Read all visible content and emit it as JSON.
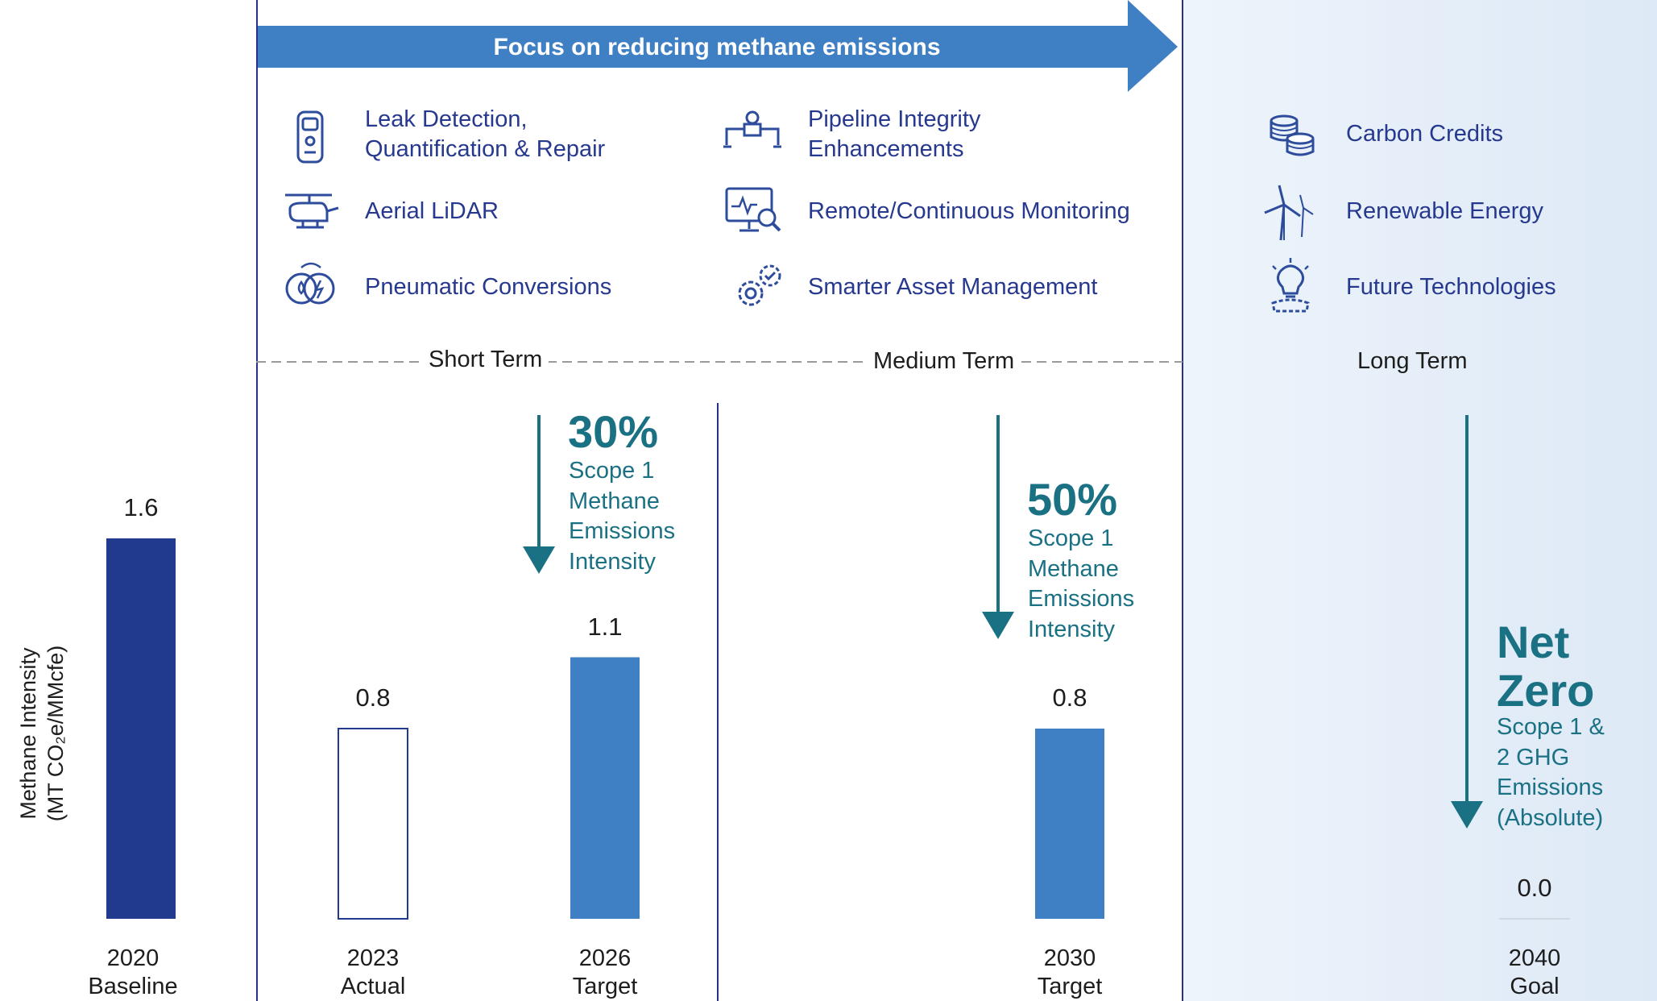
{
  "banner": {
    "label": "Focus on reducing methane emissions"
  },
  "initiatives": {
    "short_term": [
      {
        "label": "Leak Detection,\nQuantification & Repair",
        "icon": "handheld-detector-icon"
      },
      {
        "label": "Aerial LiDAR",
        "icon": "helicopter-icon"
      },
      {
        "label": "Pneumatic Conversions",
        "icon": "pneumatic-conversion-icon"
      }
    ],
    "medium_term": [
      {
        "label": "Pipeline Integrity\nEnhancements",
        "icon": "pipeline-valve-icon"
      },
      {
        "label": "Remote/Continuous Monitoring",
        "icon": "monitor-magnifier-icon"
      },
      {
        "label": "Smarter Asset Management",
        "icon": "gears-icon"
      }
    ],
    "long_term": [
      {
        "label": "Carbon Credits",
        "icon": "coin-stack-icon"
      },
      {
        "label": "Renewable Energy",
        "icon": "wind-turbine-icon"
      },
      {
        "label": "Future Technologies",
        "icon": "lightbulb-gear-icon"
      }
    ]
  },
  "terms": {
    "short": "Short Term",
    "medium": "Medium Term",
    "long": "Long Term"
  },
  "targets": {
    "t2026": {
      "pct": "30%",
      "desc": "Scope 1\nMethane\nEmissions\nIntensity"
    },
    "t2030": {
      "pct": "50%",
      "desc": "Scope 1\nMethane\nEmissions\nIntensity"
    },
    "t2040": {
      "pct": "Net\nZero",
      "desc": "Scope 1 &\n2 GHG\nEmissions\n(Absolute)"
    }
  },
  "colors": {
    "baseline_bar": "#213a8e",
    "target_bar": "#3f7fc3",
    "actual_bar_fill": "#ffffff",
    "actual_bar_stroke": "#213a8e",
    "arrow": "#1b7184",
    "banner": "#3f7fc3"
  },
  "chart_data": {
    "type": "bar",
    "ylabel_line1": "Methane Intensity",
    "ylabel_line2": "(MT CO₂e/MMcfe)",
    "ylim": [
      0,
      1.8
    ],
    "categories": [
      "2020\nBaseline",
      "2023\nActual",
      "2026\nTarget",
      "2030\nTarget",
      "2040\nGoal"
    ],
    "values": [
      1.6,
      0.8,
      1.1,
      0.8,
      0.0
    ],
    "value_labels": [
      "1.6",
      "0.8",
      "1.1",
      "0.8",
      "0.0"
    ]
  }
}
